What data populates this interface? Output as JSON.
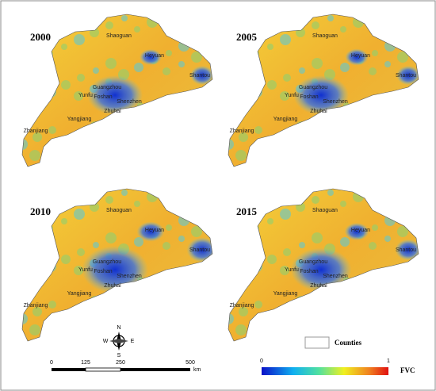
{
  "panels": [
    {
      "year": "2000",
      "cities": [
        "Shaoguan",
        "Heyuan",
        "Shantou",
        "Guangzhou",
        "Foshan",
        "Shenzhen",
        "Zhuhai",
        "Yunfu",
        "Yangjiang",
        "Zhanjiang"
      ]
    },
    {
      "year": "2005",
      "cities": [
        "Shaoguan",
        "Heyuan",
        "Shantou",
        "Guangzhou",
        "Foshan",
        "Shenzhen",
        "Zhuhai",
        "Yunfu",
        "Yangjiang",
        "Zhanjiang"
      ]
    },
    {
      "year": "2010",
      "cities": [
        "Shaoguan",
        "Heyuan",
        "Shantou",
        "Guangzhou",
        "Foshan",
        "Shenzhen",
        "Zhuhai",
        "Yunfu",
        "Yangjiang",
        "Zhanjiang"
      ]
    },
    {
      "year": "2015",
      "cities": [
        "Shaoguan",
        "Heyuan",
        "Shantou",
        "Guangzhou",
        "Foshan",
        "Shenzhen",
        "Zhuhai",
        "Yunfu",
        "Yangjiang",
        "Zhanjiang"
      ]
    }
  ],
  "compass": {
    "n": "N",
    "s": "S",
    "w": "W",
    "e": "E"
  },
  "scale_bar": {
    "ticks": [
      "0",
      "125",
      "250",
      "500"
    ],
    "unit": "km"
  },
  "legend": {
    "counties": "Counties",
    "min": "0",
    "max": "1",
    "label": "FVC"
  }
}
